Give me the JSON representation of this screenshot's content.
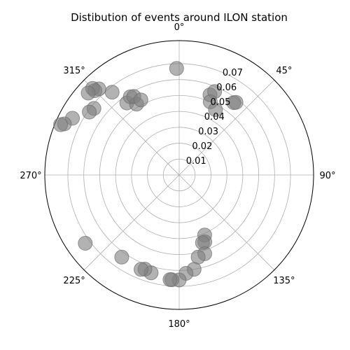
{
  "chart_data": {
    "type": "scatter",
    "projection": "polar",
    "title": "Distibution of events around ILON station",
    "theta_zero": "top",
    "theta_direction": "clockwise",
    "rlim": [
      0,
      0.0845
    ],
    "r_ticks": [
      0.01,
      0.02,
      0.03,
      0.04,
      0.05,
      0.06,
      0.07
    ],
    "r_tick_labels": [
      "0.01",
      "0.02",
      "0.03",
      "0.04",
      "0.05",
      "0.06",
      "0.07"
    ],
    "theta_ticks_deg": [
      0,
      45,
      90,
      135,
      180,
      225,
      270,
      315
    ],
    "theta_tick_labels": [
      "0°",
      "45°",
      "90°",
      "135°",
      "180°",
      "225°",
      "270°",
      "315°"
    ],
    "grid": true,
    "marker_color": "#7f7f7f",
    "points": [
      {
        "theta": 358.6,
        "r": 0.067
      },
      {
        "theta": 21,
        "r": 0.054
      },
      {
        "theta": 23,
        "r": 0.057
      },
      {
        "theta": 23,
        "r": 0.05
      },
      {
        "theta": 29,
        "r": 0.047
      },
      {
        "theta": 37,
        "r": 0.057
      },
      {
        "theta": 38,
        "r": 0.058
      },
      {
        "theta": 321,
        "r": 0.067
      },
      {
        "theta": 324,
        "r": 0.056
      },
      {
        "theta": 328,
        "r": 0.058
      },
      {
        "theta": 329,
        "r": 0.052
      },
      {
        "theta": 330,
        "r": 0.057
      },
      {
        "theta": 333,
        "r": 0.053
      },
      {
        "theta": 317,
        "r": 0.074
      },
      {
        "theta": 315,
        "r": 0.077
      },
      {
        "theta": 315,
        "r": 0.075
      },
      {
        "theta": 312,
        "r": 0.077
      },
      {
        "theta": 308,
        "r": 0.068
      },
      {
        "theta": 305,
        "r": 0.069
      },
      {
        "theta": 298,
        "r": 0.076
      },
      {
        "theta": 294,
        "r": 0.079
      },
      {
        "theta": 293,
        "r": 0.081
      },
      {
        "theta": 157,
        "r": 0.041
      },
      {
        "theta": 159,
        "r": 0.045
      },
      {
        "theta": 161,
        "r": 0.045
      },
      {
        "theta": 162,
        "r": 0.052
      },
      {
        "theta": 167,
        "r": 0.053
      },
      {
        "theta": 171,
        "r": 0.06
      },
      {
        "theta": 176,
        "r": 0.062
      },
      {
        "theta": 180,
        "r": 0.066
      },
      {
        "theta": 184,
        "r": 0.066
      },
      {
        "theta": 185,
        "r": 0.066
      },
      {
        "theta": 196,
        "r": 0.064
      },
      {
        "theta": 200,
        "r": 0.063
      },
      {
        "theta": 202,
        "r": 0.064
      },
      {
        "theta": 215,
        "r": 0.063
      },
      {
        "theta": 234,
        "r": 0.073
      }
    ]
  }
}
